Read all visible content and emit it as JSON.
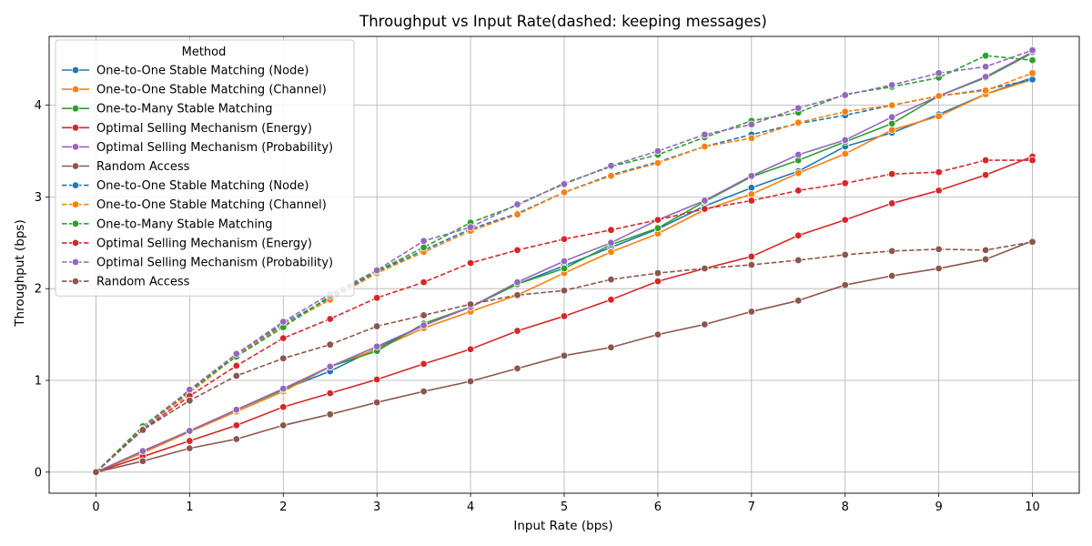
{
  "chart_data": {
    "type": "line",
    "title": "Throughput vs Input Rate(dashed: keeping messages)",
    "xlabel": "Input Rate (bps)",
    "ylabel": "Throughput (bps)",
    "xlim": [
      -0.5,
      10.5
    ],
    "ylim": [
      -0.23,
      4.75
    ],
    "xticks": [
      0,
      1,
      2,
      3,
      4,
      5,
      6,
      7,
      8,
      9,
      10
    ],
    "yticks": [
      0,
      1,
      2,
      3,
      4
    ],
    "grid": true,
    "legend": {
      "title": "Method",
      "placement": "top-left"
    },
    "x": [
      0,
      0.5,
      1,
      1.5,
      2,
      2.5,
      3,
      3.5,
      4,
      4.5,
      5,
      5.5,
      6,
      6.5,
      7,
      7.5,
      8,
      8.5,
      9,
      9.5,
      10
    ],
    "series": [
      {
        "name": "One-to-One Stable Matching (Node)",
        "color": "#1f77b4",
        "dashed": false,
        "values": [
          0,
          0.22,
          0.45,
          0.68,
          0.9,
          1.1,
          1.35,
          1.6,
          1.8,
          2.05,
          2.25,
          2.45,
          2.65,
          2.9,
          3.1,
          3.28,
          3.55,
          3.7,
          3.9,
          4.12,
          4.3
        ]
      },
      {
        "name": "One-to-One Stable Matching (Channel)",
        "color": "#ff7f0e",
        "dashed": false,
        "values": [
          0,
          0.21,
          0.44,
          0.66,
          0.88,
          1.15,
          1.34,
          1.57,
          1.75,
          1.93,
          2.17,
          2.4,
          2.6,
          2.86,
          3.03,
          3.26,
          3.47,
          3.73,
          3.88,
          4.12,
          4.28
        ]
      },
      {
        "name": "One-to-Many Stable Matching",
        "color": "#2ca02c",
        "dashed": false,
        "values": [
          0,
          0.23,
          0.45,
          0.68,
          0.9,
          1.15,
          1.32,
          1.62,
          1.8,
          2.05,
          2.22,
          2.48,
          2.66,
          2.95,
          3.22,
          3.4,
          3.6,
          3.8,
          4.1,
          4.3,
          4.57
        ]
      },
      {
        "name": "Optimal Selling Mechanism (Energy)",
        "color": "#d62728",
        "dashed": false,
        "values": [
          0,
          0.17,
          0.34,
          0.51,
          0.71,
          0.86,
          1.01,
          1.18,
          1.34,
          1.54,
          1.7,
          1.88,
          2.08,
          2.22,
          2.35,
          2.58,
          2.75,
          2.93,
          3.07,
          3.24,
          3.44
        ]
      },
      {
        "name": "Optimal Selling Mechanism (Probability)",
        "color": "#9467bd",
        "dashed": false,
        "values": [
          0,
          0.23,
          0.45,
          0.68,
          0.91,
          1.15,
          1.37,
          1.6,
          1.8,
          2.07,
          2.3,
          2.5,
          2.75,
          2.96,
          3.23,
          3.46,
          3.62,
          3.87,
          4.1,
          4.31,
          4.58
        ]
      },
      {
        "name": "Random Access",
        "color": "#8c564b",
        "dashed": false,
        "values": [
          0,
          0.12,
          0.26,
          0.36,
          0.51,
          0.63,
          0.76,
          0.88,
          0.99,
          1.13,
          1.27,
          1.36,
          1.5,
          1.61,
          1.75,
          1.87,
          2.04,
          2.14,
          2.22,
          2.32,
          2.52
        ]
      },
      {
        "name": "One-to-One Stable Matching (Node)",
        "color": "#1f77b4",
        "dashed": true,
        "values": [
          0,
          0.47,
          0.88,
          1.27,
          1.62,
          1.9,
          2.18,
          2.42,
          2.65,
          2.82,
          3.05,
          3.24,
          3.38,
          3.55,
          3.68,
          3.8,
          3.89,
          4.0,
          4.1,
          4.17,
          4.28
        ]
      },
      {
        "name": "One-to-One Stable Matching (Channel)",
        "color": "#ff7f0e",
        "dashed": true,
        "values": [
          0,
          0.48,
          0.86,
          1.27,
          1.6,
          1.88,
          2.17,
          2.4,
          2.63,
          2.81,
          3.05,
          3.23,
          3.37,
          3.55,
          3.64,
          3.81,
          3.93,
          4.0,
          4.1,
          4.16,
          4.35
        ]
      },
      {
        "name": "One-to-Many Stable Matching",
        "color": "#2ca02c",
        "dashed": true,
        "values": [
          0,
          0.5,
          0.89,
          1.26,
          1.58,
          1.92,
          2.19,
          2.45,
          2.72,
          2.91,
          3.15,
          3.33,
          3.46,
          3.65,
          3.83,
          3.92,
          4.12,
          4.2,
          4.3,
          4.54,
          4.49
        ]
      },
      {
        "name": "Optimal Selling Mechanism (Energy)",
        "color": "#d62728",
        "dashed": true,
        "values": [
          0,
          0.46,
          0.83,
          1.16,
          1.46,
          1.67,
          1.9,
          2.07,
          2.28,
          2.42,
          2.54,
          2.64,
          2.75,
          2.87,
          2.96,
          3.07,
          3.15,
          3.25,
          3.27,
          3.4,
          3.4
        ]
      },
      {
        "name": "Optimal Selling Mechanism (Probability)",
        "color": "#9467bd",
        "dashed": true,
        "values": [
          0,
          0.47,
          0.9,
          1.29,
          1.64,
          1.94,
          2.2,
          2.52,
          2.67,
          2.92,
          3.14,
          3.34,
          3.5,
          3.68,
          3.79,
          3.97,
          4.11,
          4.22,
          4.35,
          4.42,
          4.6
        ]
      },
      {
        "name": "Random Access",
        "color": "#8c564b",
        "dashed": true,
        "values": [
          0,
          0.46,
          0.78,
          1.05,
          1.24,
          1.39,
          1.59,
          1.71,
          1.83,
          1.93,
          1.98,
          2.1,
          2.17,
          2.22,
          2.26,
          2.31,
          2.37,
          2.41,
          2.43,
          2.42,
          2.51
        ]
      }
    ]
  }
}
